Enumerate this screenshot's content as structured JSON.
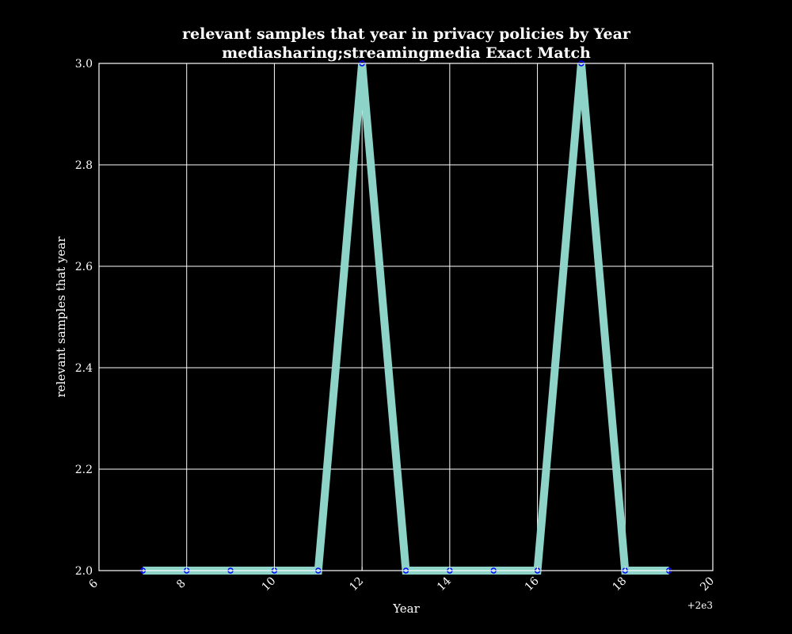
{
  "chart_data": {
    "type": "line",
    "title": "relevant samples that year in privacy policies by Year",
    "subtitle": "mediasharing;streamingmedia Exact Match",
    "xlabel": "Year",
    "ylabel": "relevant samples that year",
    "x_offset_label": "+2e3",
    "xlim": [
      6,
      20
    ],
    "ylim": [
      2.0,
      3.0
    ],
    "x_ticks": [
      6,
      8,
      10,
      12,
      14,
      16,
      18,
      20
    ],
    "x_tick_labels": [
      "6",
      "8",
      "10",
      "12",
      "14",
      "16",
      "18",
      "20"
    ],
    "y_ticks": [
      2.0,
      2.2,
      2.4,
      2.6,
      2.8,
      3.0
    ],
    "y_tick_labels": [
      "2.0",
      "2.2",
      "2.4",
      "2.6",
      "2.8",
      "3.0"
    ],
    "grid": true,
    "series": [
      {
        "x": [
          7,
          8,
          9,
          10,
          11,
          12,
          13,
          14,
          15,
          16,
          17,
          18,
          19
        ],
        "values": [
          2,
          2,
          2,
          2,
          2,
          3,
          2,
          2,
          2,
          2,
          3,
          2,
          2
        ],
        "line_color": "#8dd3c7",
        "marker_color": "#0000ff"
      }
    ]
  },
  "colors": {
    "background": "#000000",
    "foreground": "#ffffff"
  }
}
